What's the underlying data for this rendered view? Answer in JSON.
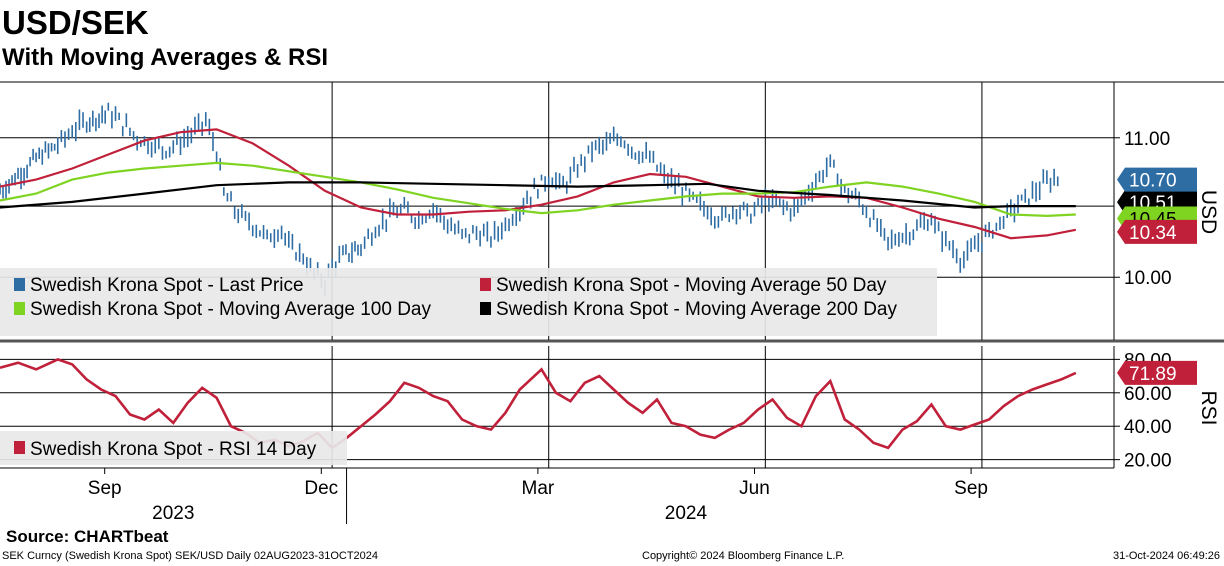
{
  "header": {
    "title": "USD/SEK",
    "subtitle": "With Moving Averages & RSI"
  },
  "footer": {
    "source": "Source: CHARTbeat",
    "ticker_info": "SEK Curncy (Swedish Krona Spot) SEK/USD  Daily 02AUG2023-31OCT2024",
    "copyright": "Copyright© 2024 Bloomberg Finance L.P.",
    "timestamp": "31-Oct-2024 06:49:26"
  },
  "colors": {
    "price": "#2e6da4",
    "ma50": "#c0203a",
    "ma100": "#7fd321",
    "ma200": "#000000",
    "rsi": "#c0203a"
  },
  "chart_data": [
    {
      "type": "ohlc",
      "panel": "price",
      "axis_label": "USD",
      "y_range": [
        9.55,
        11.4
      ],
      "y_ticks": [
        "11.00",
        "10.00"
      ],
      "y_tick_values": [
        11.0,
        10.0
      ],
      "x_range_months": [
        0,
        15
      ],
      "month_ticks": [
        {
          "label": "Sep",
          "pos": 1
        },
        {
          "label": "Dec",
          "pos": 4
        },
        {
          "label": "Mar",
          "pos": 7
        },
        {
          "label": "Jun",
          "pos": 10
        },
        {
          "label": "Sep",
          "pos": 13
        }
      ],
      "year_labels": [
        {
          "label": "2023",
          "pos": 2.4
        },
        {
          "label": "2024",
          "pos": 9.5
        }
      ],
      "year_boundary": 5,
      "series": [
        {
          "name": "Swedish Krona Spot - Last Price",
          "color": "#2e6da4",
          "style": "bars",
          "points": [
            [
              0,
              10.62
            ],
            [
              0.25,
              10.73
            ],
            [
              0.5,
              10.85
            ],
            [
              0.8,
              10.95
            ],
            [
              1.0,
              11.05
            ],
            [
              1.2,
              11.12
            ],
            [
              1.5,
              11.18
            ],
            [
              1.7,
              11.1
            ],
            [
              1.9,
              11.0
            ],
            [
              2.1,
              10.95
            ],
            [
              2.3,
              10.92
            ],
            [
              2.5,
              10.97
            ],
            [
              2.7,
              11.05
            ],
            [
              2.85,
              11.12
            ],
            [
              3.0,
              10.9
            ],
            [
              3.1,
              10.6
            ],
            [
              3.3,
              10.45
            ],
            [
              3.5,
              10.38
            ],
            [
              3.7,
              10.28
            ],
            [
              3.9,
              10.35
            ],
            [
              4.0,
              10.22
            ],
            [
              4.2,
              10.15
            ],
            [
              4.3,
              10.05
            ],
            [
              4.5,
              9.97
            ],
            [
              4.6,
              10.08
            ],
            [
              4.75,
              10.15
            ],
            [
              5.0,
              10.22
            ],
            [
              5.2,
              10.35
            ],
            [
              5.4,
              10.45
            ],
            [
              5.6,
              10.48
            ],
            [
              5.8,
              10.42
            ],
            [
              6.0,
              10.5
            ],
            [
              6.2,
              10.38
            ],
            [
              6.4,
              10.3
            ],
            [
              6.6,
              10.32
            ],
            [
              6.8,
              10.28
            ],
            [
              7.0,
              10.38
            ],
            [
              7.2,
              10.5
            ],
            [
              7.4,
              10.62
            ],
            [
              7.6,
              10.72
            ],
            [
              7.8,
              10.65
            ],
            [
              8.0,
              10.78
            ],
            [
              8.2,
              10.92
            ],
            [
              8.4,
              10.95
            ],
            [
              8.6,
              11.0
            ],
            [
              8.8,
              10.9
            ],
            [
              9.0,
              10.85
            ],
            [
              9.2,
              10.72
            ],
            [
              9.4,
              10.65
            ],
            [
              9.6,
              10.55
            ],
            [
              9.8,
              10.48
            ],
            [
              10.0,
              10.42
            ],
            [
              10.2,
              10.5
            ],
            [
              10.4,
              10.45
            ],
            [
              10.6,
              10.55
            ],
            [
              10.8,
              10.52
            ],
            [
              11.0,
              10.48
            ],
            [
              11.2,
              10.62
            ],
            [
              11.4,
              10.75
            ],
            [
              11.5,
              10.82
            ],
            [
              11.7,
              10.62
            ],
            [
              11.9,
              10.55
            ],
            [
              12.1,
              10.4
            ],
            [
              12.3,
              10.25
            ],
            [
              12.5,
              10.3
            ],
            [
              12.7,
              10.35
            ],
            [
              12.9,
              10.42
            ],
            [
              13.0,
              10.32
            ],
            [
              13.2,
              10.2
            ],
            [
              13.35,
              10.12
            ],
            [
              13.5,
              10.22
            ],
            [
              13.7,
              10.32
            ],
            [
              13.9,
              10.42
            ],
            [
              14.1,
              10.52
            ],
            [
              14.3,
              10.6
            ],
            [
              14.5,
              10.68
            ],
            [
              14.7,
              10.72
            ]
          ]
        },
        {
          "name": "Swedish Krona Spot - Moving Average 50 Day",
          "color": "#c0203a",
          "style": "line",
          "points": [
            [
              0,
              10.65
            ],
            [
              0.5,
              10.7
            ],
            [
              1.0,
              10.78
            ],
            [
              1.5,
              10.88
            ],
            [
              2.0,
              10.98
            ],
            [
              2.5,
              11.04
            ],
            [
              3.0,
              11.06
            ],
            [
              3.5,
              10.96
            ],
            [
              4.0,
              10.8
            ],
            [
              4.5,
              10.62
            ],
            [
              5.0,
              10.5
            ],
            [
              5.5,
              10.45
            ],
            [
              6.0,
              10.45
            ],
            [
              6.5,
              10.47
            ],
            [
              7.0,
              10.48
            ],
            [
              7.5,
              10.52
            ],
            [
              8.0,
              10.58
            ],
            [
              8.5,
              10.68
            ],
            [
              9.0,
              10.74
            ],
            [
              9.5,
              10.72
            ],
            [
              10.0,
              10.65
            ],
            [
              10.5,
              10.58
            ],
            [
              11.0,
              10.57
            ],
            [
              11.5,
              10.58
            ],
            [
              12.0,
              10.57
            ],
            [
              12.5,
              10.5
            ],
            [
              13.0,
              10.42
            ],
            [
              13.5,
              10.36
            ],
            [
              14.0,
              10.28
            ],
            [
              14.5,
              10.3
            ],
            [
              14.9,
              10.34
            ]
          ]
        },
        {
          "name": "Swedish Krona Spot - Moving Average 100 Day",
          "color": "#7fd321",
          "style": "line",
          "points": [
            [
              0,
              10.55
            ],
            [
              0.5,
              10.6
            ],
            [
              1.0,
              10.7
            ],
            [
              1.5,
              10.75
            ],
            [
              2.0,
              10.78
            ],
            [
              2.5,
              10.8
            ],
            [
              3.0,
              10.82
            ],
            [
              3.5,
              10.8
            ],
            [
              4.0,
              10.76
            ],
            [
              4.5,
              10.72
            ],
            [
              5.0,
              10.68
            ],
            [
              5.5,
              10.63
            ],
            [
              6.0,
              10.57
            ],
            [
              6.5,
              10.53
            ],
            [
              7.0,
              10.49
            ],
            [
              7.5,
              10.46
            ],
            [
              8.0,
              10.48
            ],
            [
              8.5,
              10.52
            ],
            [
              9.0,
              10.55
            ],
            [
              9.5,
              10.58
            ],
            [
              10.0,
              10.6
            ],
            [
              10.5,
              10.6
            ],
            [
              11.0,
              10.61
            ],
            [
              11.5,
              10.65
            ],
            [
              12.0,
              10.68
            ],
            [
              12.5,
              10.65
            ],
            [
              13.0,
              10.6
            ],
            [
              13.5,
              10.54
            ],
            [
              14.0,
              10.45
            ],
            [
              14.5,
              10.44
            ],
            [
              14.9,
              10.45
            ]
          ]
        },
        {
          "name": "Swedish Krona Spot - Moving Average 200 Day",
          "color": "#000000",
          "style": "line",
          "points": [
            [
              0,
              10.5
            ],
            [
              1.0,
              10.54
            ],
            [
              2.0,
              10.6
            ],
            [
              3.0,
              10.66
            ],
            [
              4.0,
              10.68
            ],
            [
              5.0,
              10.68
            ],
            [
              6.0,
              10.67
            ],
            [
              7.0,
              10.66
            ],
            [
              8.0,
              10.65
            ],
            [
              9.0,
              10.66
            ],
            [
              9.8,
              10.67
            ],
            [
              10.5,
              10.62
            ],
            [
              11.5,
              10.59
            ],
            [
              12.5,
              10.55
            ],
            [
              13.5,
              10.5
            ],
            [
              14.0,
              10.51
            ],
            [
              14.9,
              10.51
            ]
          ]
        }
      ],
      "end_labels": [
        {
          "series": "Last Price",
          "value": 10.7,
          "label": "10.70",
          "color": "#2e6da4"
        },
        {
          "series": "MA200",
          "value": 10.51,
          "label": "10.51",
          "color": "#000000"
        },
        {
          "series": "MA100",
          "value": 10.45,
          "label": "10.45",
          "color": "#7fd321"
        },
        {
          "series": "MA50",
          "value": 10.34,
          "label": "10.34",
          "color": "#c0203a"
        }
      ],
      "legend": {
        "placement": "bottom-left",
        "entries": [
          {
            "label": "Swedish Krona Spot - Last Price",
            "color": "#2e6da4"
          },
          {
            "label": "Swedish Krona Spot - Moving Average 50 Day",
            "color": "#c0203a"
          },
          {
            "label": "Swedish Krona Spot - Moving Average 100 Day",
            "color": "#7fd321"
          },
          {
            "label": "Swedish Krona Spot - Moving Average 200 Day",
            "color": "#000000"
          }
        ]
      }
    },
    {
      "type": "line",
      "panel": "rsi",
      "axis_label": "RSI",
      "y_range": [
        15,
        88
      ],
      "y_ticks": [
        "80.00",
        "60.00",
        "40.00",
        "20.00"
      ],
      "y_tick_values": [
        80,
        60,
        40,
        20
      ],
      "series": [
        {
          "name": "Swedish Krona Spot - RSI 14 Day",
          "color": "#c0203a",
          "points": [
            [
              0,
              75
            ],
            [
              0.25,
              78
            ],
            [
              0.5,
              74
            ],
            [
              0.8,
              80
            ],
            [
              1.0,
              77
            ],
            [
              1.2,
              68
            ],
            [
              1.4,
              62
            ],
            [
              1.6,
              58
            ],
            [
              1.8,
              47
            ],
            [
              2.0,
              44
            ],
            [
              2.2,
              50
            ],
            [
              2.4,
              42
            ],
            [
              2.6,
              54
            ],
            [
              2.8,
              63
            ],
            [
              3.0,
              57
            ],
            [
              3.2,
              40
            ],
            [
              3.4,
              36
            ],
            [
              3.6,
              30
            ],
            [
              3.8,
              32
            ],
            [
              4.0,
              28
            ],
            [
              4.2,
              31
            ],
            [
              4.4,
              36
            ],
            [
              4.6,
              27
            ],
            [
              4.8,
              33
            ],
            [
              5.0,
              40
            ],
            [
              5.2,
              47
            ],
            [
              5.4,
              55
            ],
            [
              5.6,
              66
            ],
            [
              5.8,
              63
            ],
            [
              6.0,
              58
            ],
            [
              6.2,
              55
            ],
            [
              6.4,
              44
            ],
            [
              6.6,
              40
            ],
            [
              6.8,
              38
            ],
            [
              7.0,
              48
            ],
            [
              7.2,
              62
            ],
            [
              7.4,
              70
            ],
            [
              7.5,
              74
            ],
            [
              7.7,
              60
            ],
            [
              7.9,
              55
            ],
            [
              8.1,
              66
            ],
            [
              8.3,
              70
            ],
            [
              8.5,
              62
            ],
            [
              8.7,
              54
            ],
            [
              8.9,
              48
            ],
            [
              9.1,
              56
            ],
            [
              9.3,
              42
            ],
            [
              9.5,
              40
            ],
            [
              9.7,
              35
            ],
            [
              9.9,
              33
            ],
            [
              10.1,
              38
            ],
            [
              10.3,
              42
            ],
            [
              10.5,
              50
            ],
            [
              10.7,
              56
            ],
            [
              10.9,
              45
            ],
            [
              11.1,
              40
            ],
            [
              11.3,
              58
            ],
            [
              11.5,
              67
            ],
            [
              11.7,
              44
            ],
            [
              11.9,
              38
            ],
            [
              12.1,
              30
            ],
            [
              12.3,
              27
            ],
            [
              12.5,
              38
            ],
            [
              12.7,
              43
            ],
            [
              12.9,
              53
            ],
            [
              13.1,
              40
            ],
            [
              13.3,
              38
            ],
            [
              13.5,
              41
            ],
            [
              13.7,
              44
            ],
            [
              13.9,
              52
            ],
            [
              14.1,
              58
            ],
            [
              14.3,
              62
            ],
            [
              14.5,
              65
            ],
            [
              14.7,
              68
            ],
            [
              14.9,
              71.89
            ]
          ]
        }
      ],
      "end_labels": [
        {
          "series": "RSI",
          "value": 71.89,
          "label": "71.89",
          "color": "#c0203a"
        }
      ],
      "legend": {
        "placement": "bottom-left",
        "entries": [
          {
            "label": "Swedish Krona Spot - RSI 14 Day",
            "color": "#c0203a"
          }
        ]
      }
    }
  ]
}
